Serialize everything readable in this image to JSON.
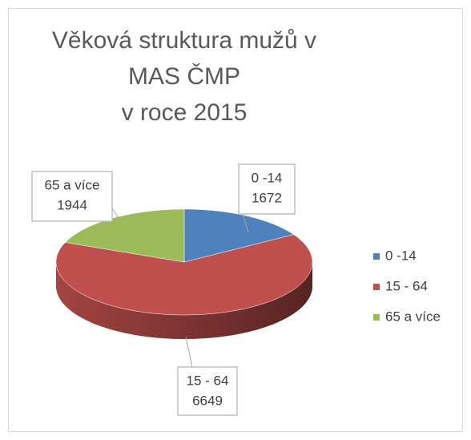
{
  "chart_data": {
    "type": "pie3d",
    "title": "Věková struktura mužů v MAS ČMP",
    "subtitle": "v roce 2015",
    "categories": [
      "0 -14",
      "15 - 64",
      "65 a více"
    ],
    "values": [
      1672,
      6649,
      1944
    ],
    "colors": [
      "#4f81bd",
      "#c0504d",
      "#9bbb59"
    ],
    "legend": "right"
  }
}
